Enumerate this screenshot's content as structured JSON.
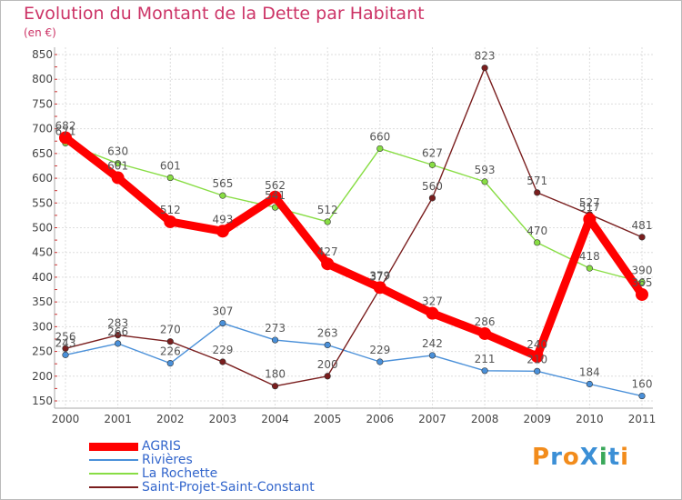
{
  "title": "Evolution du Montant de la Dette par Habitant",
  "subtitle": "(en €)",
  "logo": {
    "text": "ProXiti",
    "letters": [
      "P",
      "r",
      "o",
      "X",
      "i",
      "t",
      "i"
    ],
    "colors": [
      "#f28c1c",
      "#3b8fd6",
      "#f28c1c",
      "#3b8fd6",
      "#3aa85a",
      "#3b8fd6",
      "#f28c1c"
    ]
  },
  "chart_data": {
    "type": "line",
    "x": [
      "2000",
      "2001",
      "2002",
      "2003",
      "2004",
      "2005",
      "2006",
      "2007",
      "2008",
      "2009",
      "2010",
      "2011"
    ],
    "ylim": [
      150,
      850
    ],
    "yticks": [
      150,
      200,
      250,
      300,
      350,
      400,
      450,
      500,
      550,
      600,
      650,
      700,
      750,
      800,
      850
    ],
    "grid": true,
    "legend_position": "bottom-left",
    "series": [
      {
        "name": "AGRIS",
        "color": "#ff0000",
        "values": [
          682,
          601,
          512,
          493,
          562,
          427,
          379,
          327,
          286,
          240,
          517,
          365
        ]
      },
      {
        "name": "Rivières",
        "color": "#4a90d9",
        "values": [
          243,
          266,
          226,
          307,
          273,
          263,
          229,
          242,
          211,
          210,
          184,
          160
        ]
      },
      {
        "name": "La Rochette",
        "color": "#88dd44",
        "values": [
          671,
          630,
          601,
          565,
          541,
          512,
          660,
          627,
          593,
          470,
          418,
          390
        ]
      },
      {
        "name": "Saint-Projet-Saint-Constant",
        "color": "#7a1e1e",
        "values": [
          256,
          283,
          270,
          229,
          180,
          200,
          377,
          560,
          823,
          571,
          527,
          481
        ]
      }
    ]
  }
}
